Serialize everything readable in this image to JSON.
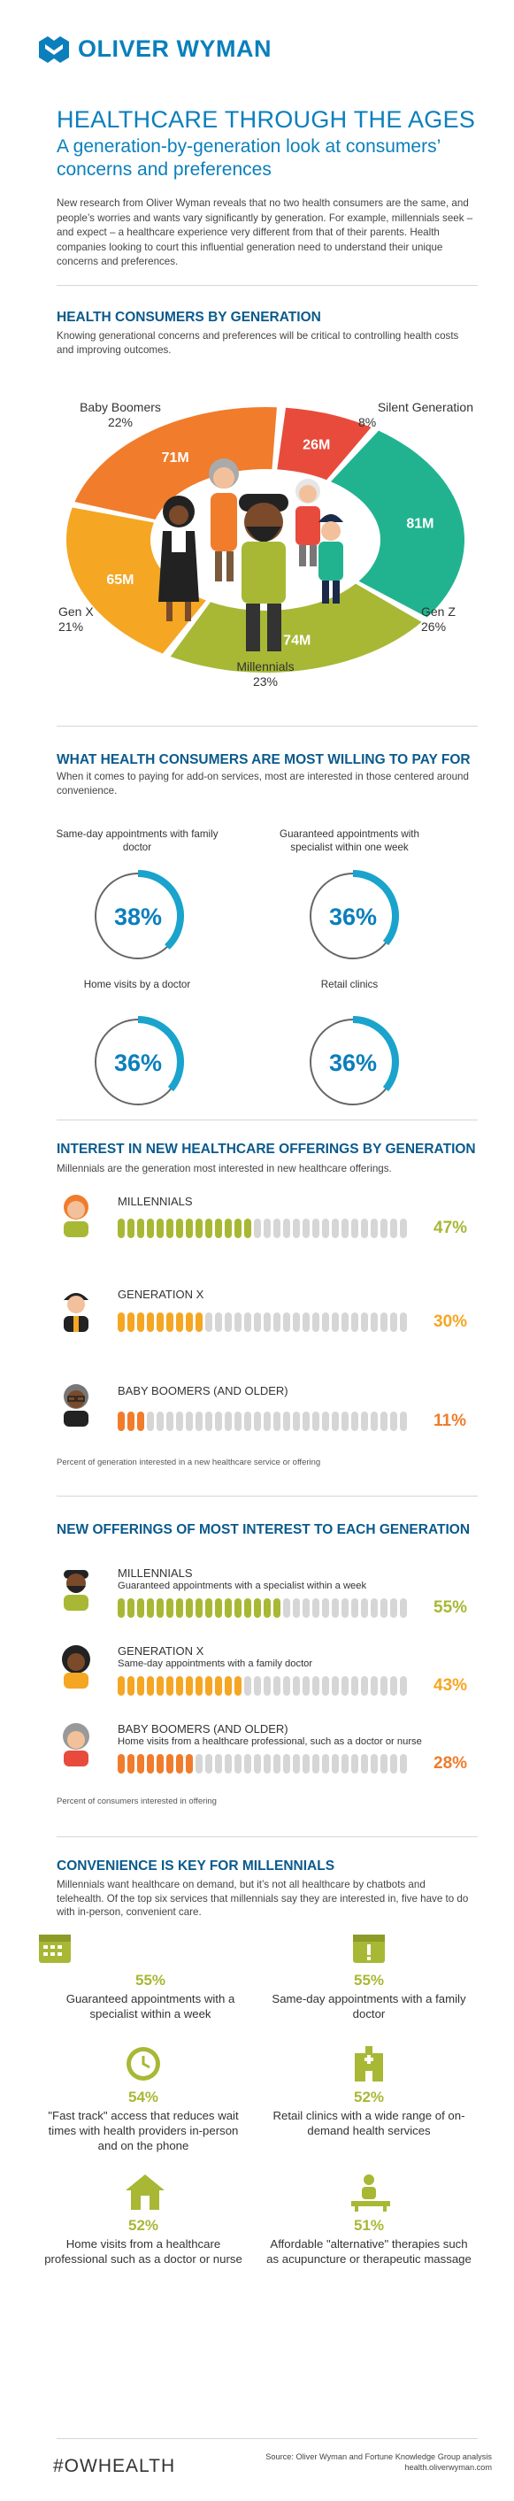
{
  "brand": {
    "name": "OLIVER WYMAN",
    "color": "#0a7fbc"
  },
  "header": {
    "title": "HEALTHCARE THROUGH THE AGES",
    "subtitle": "A generation-by-generation look at consumers’ concerns and preferences",
    "intro": "New research from Oliver Wyman reveals that no two health consumers are the same, and people’s worries and wants vary significantly by generation. For example, millennials seek – and expect – a healthcare experience very different from that of their parents. Health companies looking to court this influential generation need to understand their unique concerns and preferences."
  },
  "sections": {
    "generations": {
      "heading": "HEALTH CONSUMERS BY GENERATION",
      "subheading": "Knowing generational concerns and preferences will be critical to controlling health costs and improving outcomes."
    },
    "willing": {
      "heading": "WHAT HEALTH CONSUMERS ARE MOST WILLING TO PAY FOR",
      "subheading": "When it comes to paying for add-on services, most are interested in those centered around convenience."
    },
    "interest": {
      "heading": "INTEREST IN NEW HEALTHCARE OFFERINGS BY GENERATION",
      "subheading": "Millennials are the generation most interested in new healthcare offerings.",
      "note": "Percent of generation interested in a new healthcare service or offering"
    },
    "offerings": {
      "heading": "NEW OFFERINGS OF MOST INTEREST TO EACH GENERATION",
      "note": "Percent of consumers interested in offering"
    },
    "convenience": {
      "heading": "CONVENIENCE IS KEY FOR MILLENNIALS",
      "subheading": "Millennials want healthcare on demand, but it’s not all healthcare by chatbots and telehealth. Of the top six services that millennials say they are interested in, five have to do with in-person, convenient care."
    }
  },
  "chart_data": [
    {
      "type": "pie",
      "title": "HEALTH CONSUMERS BY GENERATION",
      "categories": [
        "Silent Generation",
        "Gen Z",
        "Millennials",
        "Gen X",
        "Baby Boomers"
      ],
      "values": [
        8,
        26,
        23,
        21,
        22
      ],
      "value_labels": [
        "8%",
        "26%",
        "23%",
        "21%",
        "22%"
      ],
      "counts": [
        "26M",
        "81M",
        "74M",
        "65M",
        "71M"
      ],
      "colors": [
        "#e84b3c",
        "#21b38f",
        "#a8b835",
        "#f5a623",
        "#f07c2c"
      ]
    },
    {
      "type": "pie",
      "title": "WHAT HEALTH CONSUMERS ARE MOST WILLING TO PAY FOR",
      "categories": [
        "Same-day appointments with family doctor",
        "Guaranteed appointments with specialist within one week",
        "Home visits by a doctor",
        "Retail clinics"
      ],
      "values": [
        38,
        36,
        36,
        36
      ],
      "value_labels": [
        "38%",
        "36%",
        "36%",
        "36%"
      ],
      "colors": [
        "#1aa3cc"
      ]
    },
    {
      "type": "bar",
      "title": "INTEREST IN NEW HEALTHCARE OFFERINGS BY GENERATION",
      "categories": [
        "MILLENNIALS",
        "GENERATION X",
        "BABY BOOMERS (AND OLDER)"
      ],
      "values": [
        47,
        30,
        11
      ],
      "value_labels": [
        "47%",
        "30%",
        "11%"
      ],
      "colors": [
        "#a8b835",
        "#f5a623",
        "#f07c2c"
      ],
      "ylim": [
        0,
        100
      ]
    },
    {
      "type": "bar",
      "title": "NEW OFFERINGS OF MOST INTEREST TO EACH GENERATION",
      "categories": [
        "MILLENNIALS",
        "GENERATION X",
        "BABY BOOMERS (AND OLDER)"
      ],
      "descriptions": [
        "Guaranteed appointments with a specialist within a week",
        "Same-day appointments with a family doctor",
        "Home visits from a healthcare professional, such as a doctor or nurse"
      ],
      "values": [
        55,
        43,
        28
      ],
      "value_labels": [
        "55%",
        "43%",
        "28%"
      ],
      "colors": [
        "#a8b835",
        "#f5a623",
        "#f07c2c"
      ],
      "ylim": [
        0,
        100
      ]
    },
    {
      "type": "table",
      "title": "CONVENIENCE IS KEY FOR MILLENNIALS",
      "rows": [
        {
          "value": "55%",
          "label": "Guaranteed appointments with a specialist within a week",
          "icon": "calendar-icon"
        },
        {
          "value": "55%",
          "label": "Same-day appointments with a family doctor",
          "icon": "calendar-alert-icon"
        },
        {
          "value": "54%",
          "label": "\"Fast track\" access that reduces wait times with health providers in-person and on the phone",
          "icon": "clock-icon"
        },
        {
          "value": "52%",
          "label": "Retail clinics with a wide range of on-demand health services",
          "icon": "clinic-icon"
        },
        {
          "value": "52%",
          "label": "Home visits from a healthcare professional such as a doctor or nurse",
          "icon": "house-icon"
        },
        {
          "value": "51%",
          "label": "Affordable \"alternative\" therapies such as acupuncture or therapeutic massage",
          "icon": "massage-icon"
        }
      ]
    }
  ],
  "footer": {
    "hashtag": "#OWHEALTH",
    "source": "Source: Oliver Wyman and Fortune Knowledge Group analysis",
    "url": "health.oliverwyman.com"
  }
}
